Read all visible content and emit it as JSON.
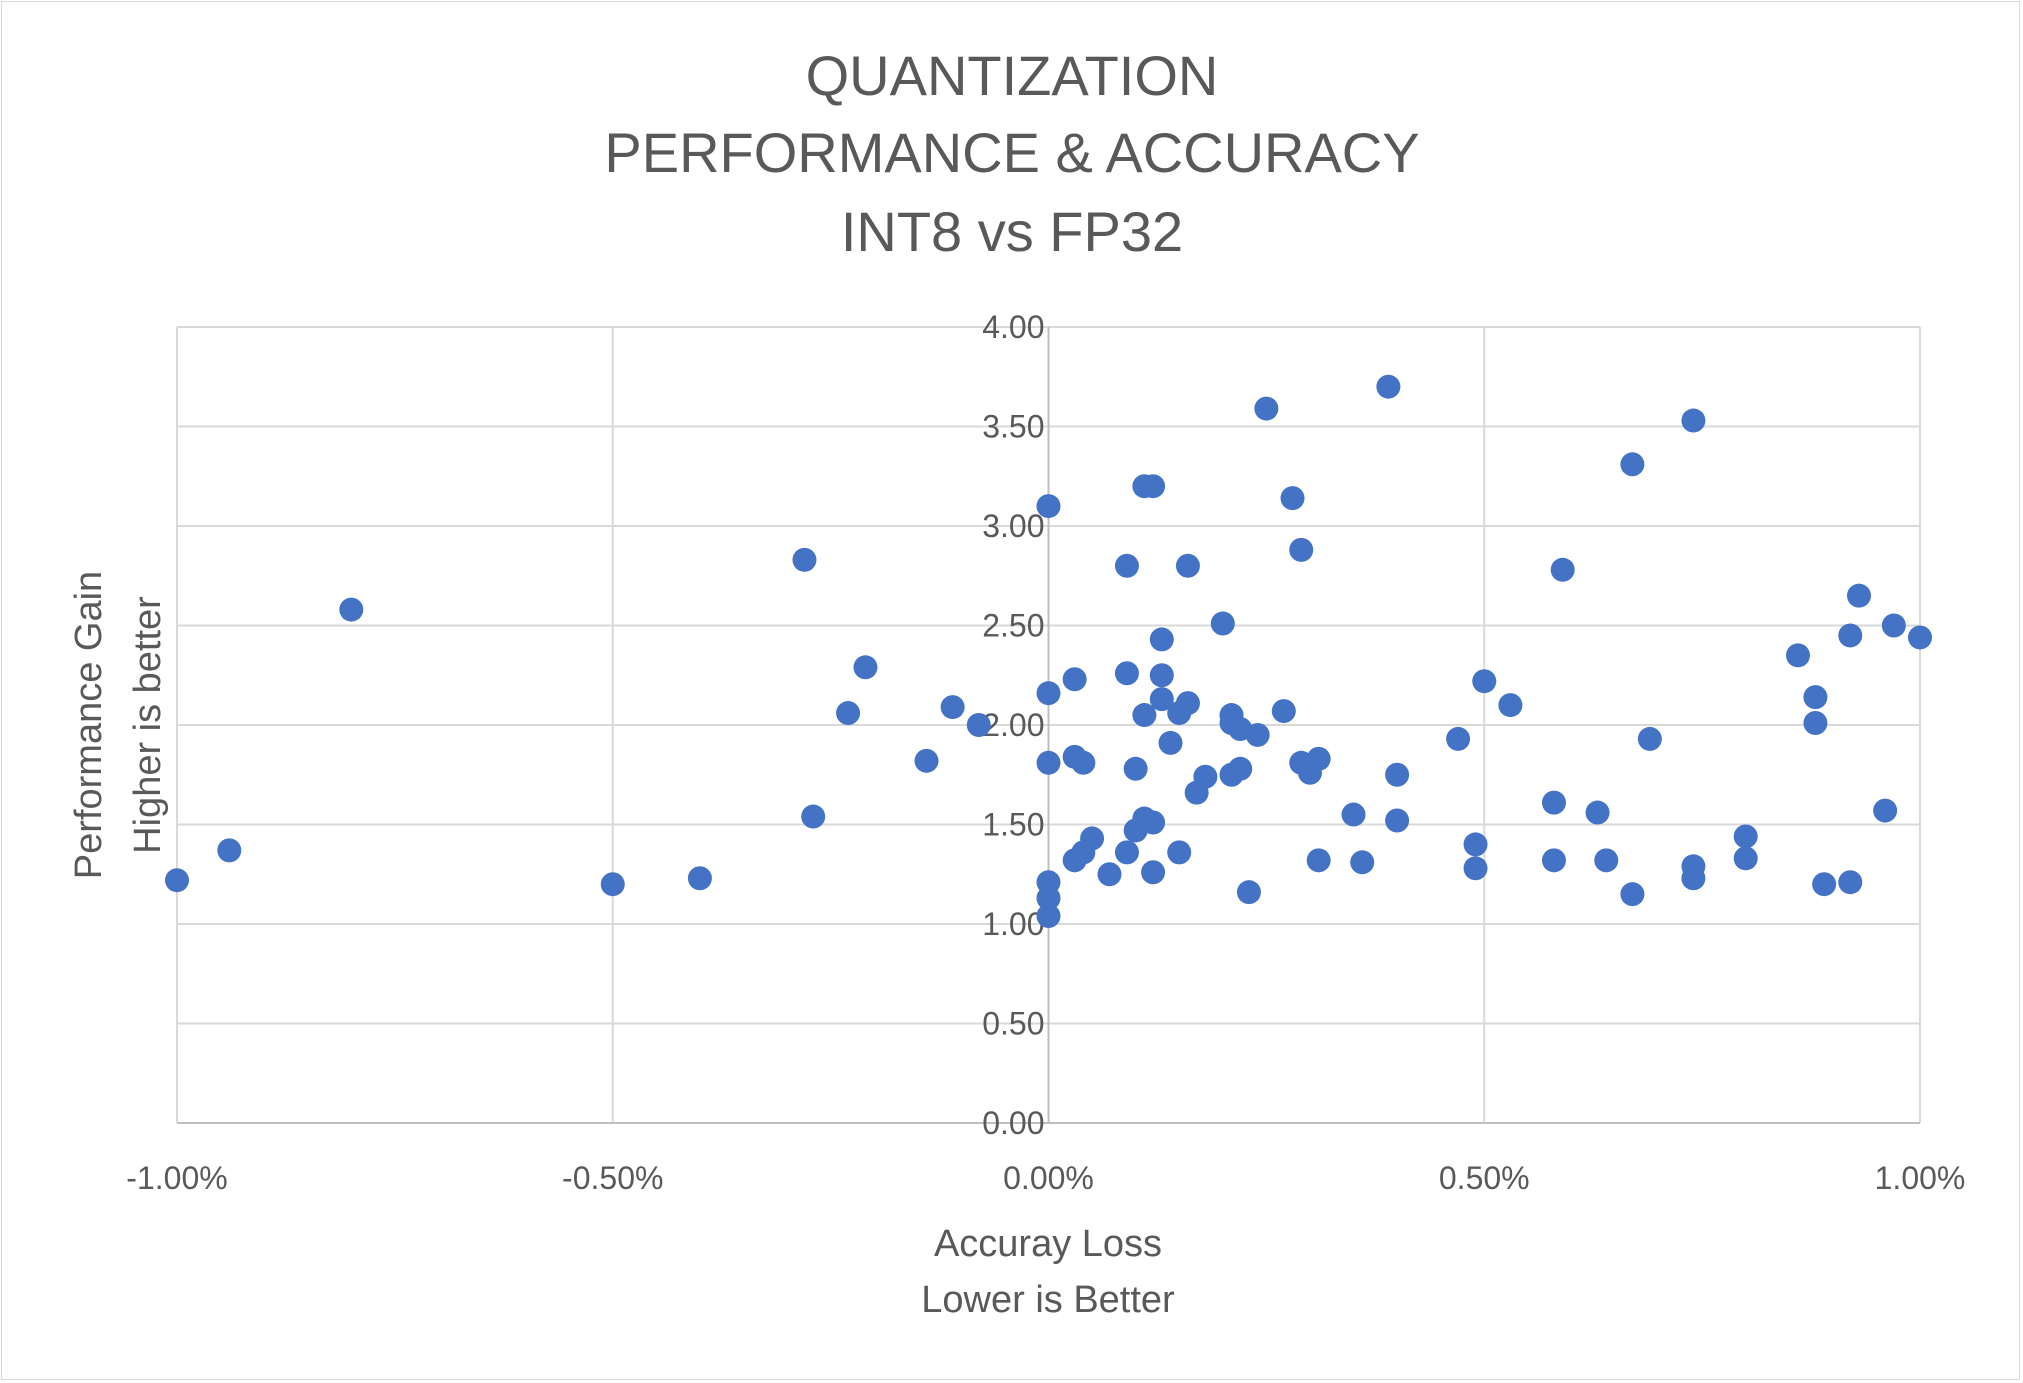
{
  "chart_data": {
    "type": "scatter",
    "title_lines": [
      "QUANTIZATION",
      "PERFORMANCE & ACCURACY",
      "INT8 vs FP32"
    ],
    "xlabel_lines": [
      "Accuray Loss",
      "Lower is Better"
    ],
    "ylabel_lines": [
      "Performance Gain",
      "Higher is better"
    ],
    "xlim": [
      -1.0,
      1.0
    ],
    "ylim": [
      0.0,
      4.0
    ],
    "x_ticks": [
      -1.0,
      -0.5,
      0.0,
      0.5,
      1.0
    ],
    "x_tick_labels": [
      "-1.00%",
      "-0.50%",
      "0.00%",
      "0.50%",
      "1.00%"
    ],
    "y_ticks": [
      0.0,
      0.5,
      1.0,
      1.5,
      2.0,
      2.5,
      3.0,
      3.5,
      4.0
    ],
    "y_tick_labels": [
      "0.00",
      "0.50",
      "1.00",
      "1.50",
      "2.00",
      "2.50",
      "3.00",
      "3.50",
      "4.00"
    ],
    "grid": true,
    "marker_color": "#4472c4",
    "series": [
      {
        "points": [
          [
            -1.0,
            1.22
          ],
          [
            -0.94,
            1.37
          ],
          [
            -0.8,
            2.58
          ],
          [
            -0.5,
            1.2
          ],
          [
            -0.4,
            1.23
          ],
          [
            -0.28,
            2.83
          ],
          [
            -0.27,
            1.54
          ],
          [
            -0.23,
            2.06
          ],
          [
            -0.21,
            2.29
          ],
          [
            -0.14,
            1.82
          ],
          [
            -0.11,
            2.09
          ],
          [
            -0.08,
            2.0
          ],
          [
            0.0,
            3.1
          ],
          [
            0.0,
            2.16
          ],
          [
            0.0,
            1.81
          ],
          [
            0.0,
            1.21
          ],
          [
            0.0,
            1.13
          ],
          [
            0.0,
            1.04
          ],
          [
            0.03,
            2.23
          ],
          [
            0.03,
            1.84
          ],
          [
            0.03,
            1.32
          ],
          [
            0.04,
            1.81
          ],
          [
            0.04,
            1.36
          ],
          [
            0.05,
            1.43
          ],
          [
            0.07,
            1.25
          ],
          [
            0.09,
            2.8
          ],
          [
            0.09,
            2.26
          ],
          [
            0.09,
            1.36
          ],
          [
            0.1,
            1.78
          ],
          [
            0.1,
            1.47
          ],
          [
            0.11,
            3.2
          ],
          [
            0.11,
            2.05
          ],
          [
            0.11,
            1.53
          ],
          [
            0.12,
            3.2
          ],
          [
            0.12,
            1.51
          ],
          [
            0.12,
            1.26
          ],
          [
            0.13,
            2.43
          ],
          [
            0.13,
            2.25
          ],
          [
            0.13,
            2.13
          ],
          [
            0.14,
            1.91
          ],
          [
            0.15,
            2.06
          ],
          [
            0.15,
            1.36
          ],
          [
            0.16,
            2.8
          ],
          [
            0.16,
            2.11
          ],
          [
            0.17,
            1.66
          ],
          [
            0.18,
            1.74
          ],
          [
            0.2,
            2.51
          ],
          [
            0.21,
            2.05
          ],
          [
            0.21,
            2.01
          ],
          [
            0.21,
            1.75
          ],
          [
            0.22,
            1.98
          ],
          [
            0.22,
            1.78
          ],
          [
            0.23,
            1.16
          ],
          [
            0.24,
            1.95
          ],
          [
            0.25,
            3.59
          ],
          [
            0.27,
            2.07
          ],
          [
            0.28,
            3.14
          ],
          [
            0.29,
            2.88
          ],
          [
            0.29,
            1.81
          ],
          [
            0.3,
            1.76
          ],
          [
            0.31,
            1.83
          ],
          [
            0.31,
            1.32
          ],
          [
            0.35,
            1.55
          ],
          [
            0.36,
            1.31
          ],
          [
            0.39,
            3.7
          ],
          [
            0.4,
            1.75
          ],
          [
            0.4,
            1.52
          ],
          [
            0.47,
            1.93
          ],
          [
            0.49,
            1.4
          ],
          [
            0.49,
            1.28
          ],
          [
            0.5,
            2.22
          ],
          [
            0.53,
            2.1
          ],
          [
            0.58,
            1.61
          ],
          [
            0.58,
            1.32
          ],
          [
            0.59,
            2.78
          ],
          [
            0.63,
            1.56
          ],
          [
            0.64,
            1.32
          ],
          [
            0.67,
            3.31
          ],
          [
            0.67,
            1.15
          ],
          [
            0.69,
            1.93
          ],
          [
            0.74,
            3.53
          ],
          [
            0.74,
            1.29
          ],
          [
            0.74,
            1.23
          ],
          [
            0.8,
            1.44
          ],
          [
            0.8,
            1.33
          ],
          [
            0.86,
            2.35
          ],
          [
            0.88,
            2.14
          ],
          [
            0.88,
            2.01
          ],
          [
            0.89,
            1.2
          ],
          [
            0.92,
            2.45
          ],
          [
            0.92,
            1.21
          ],
          [
            0.93,
            2.65
          ],
          [
            0.96,
            1.57
          ],
          [
            0.97,
            2.5
          ],
          [
            1.0,
            2.44
          ]
        ]
      }
    ]
  }
}
